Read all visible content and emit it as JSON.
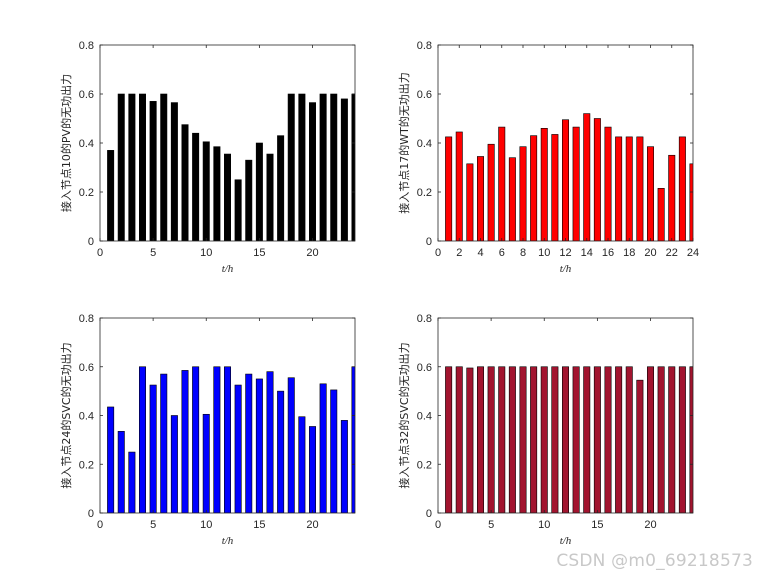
{
  "watermark": "CSDN @m0_69218573",
  "chart_data": [
    {
      "type": "bar",
      "color": "#000000",
      "x": [
        1,
        2,
        3,
        4,
        5,
        6,
        7,
        8,
        9,
        10,
        11,
        12,
        13,
        14,
        15,
        16,
        17,
        18,
        19,
        20,
        21,
        22,
        23,
        24
      ],
      "values": [
        0.37,
        0.6,
        0.6,
        0.6,
        0.57,
        0.6,
        0.565,
        0.475,
        0.44,
        0.405,
        0.385,
        0.355,
        0.25,
        0.33,
        0.4,
        0.355,
        0.43,
        0.6,
        0.6,
        0.565,
        0.6,
        0.6,
        0.58,
        0.6
      ],
      "xlim": [
        0,
        24
      ],
      "ylim": [
        0,
        0.8
      ],
      "xticks": [
        0,
        5,
        10,
        15,
        20
      ],
      "yticks": [
        0,
        0.2,
        0.4,
        0.6,
        0.8
      ],
      "xtick_labels": [
        "0",
        "5",
        "10",
        "15",
        "20"
      ],
      "ytick_labels": [
        "0",
        "0.2",
        "0.4",
        "0.6",
        "0.8"
      ],
      "xlabel": "t/h",
      "ylabel": "接入节点10的PV的无功出力"
    },
    {
      "type": "bar",
      "color": "#ff0000",
      "x": [
        1,
        2,
        3,
        4,
        5,
        6,
        7,
        8,
        9,
        10,
        11,
        12,
        13,
        14,
        15,
        16,
        17,
        18,
        19,
        20,
        21,
        22,
        23,
        24
      ],
      "values": [
        0.425,
        0.445,
        0.315,
        0.345,
        0.395,
        0.465,
        0.34,
        0.385,
        0.43,
        0.46,
        0.435,
        0.495,
        0.465,
        0.52,
        0.5,
        0.465,
        0.425,
        0.425,
        0.425,
        0.385,
        0.215,
        0.35,
        0.425,
        0.315
      ],
      "xlim": [
        0,
        24
      ],
      "ylim": [
        0,
        0.8
      ],
      "xticks": [
        0,
        2,
        4,
        6,
        8,
        10,
        12,
        14,
        16,
        18,
        20,
        22,
        24
      ],
      "yticks": [
        0,
        0.2,
        0.4,
        0.6,
        0.8
      ],
      "xtick_labels": [
        "0",
        "2",
        "4",
        "6",
        "8",
        "10",
        "12",
        "14",
        "16",
        "18",
        "20",
        "22",
        "24"
      ],
      "ytick_labels": [
        "0",
        "0.2",
        "0.4",
        "0.6",
        "0.8"
      ],
      "xlabel": "t/h",
      "ylabel": "接入节点17的WT的无功出力"
    },
    {
      "type": "bar",
      "color": "#0000ff",
      "x": [
        1,
        2,
        3,
        4,
        5,
        6,
        7,
        8,
        9,
        10,
        11,
        12,
        13,
        14,
        15,
        16,
        17,
        18,
        19,
        20,
        21,
        22,
        23,
        24
      ],
      "values": [
        0.435,
        0.335,
        0.25,
        0.6,
        0.525,
        0.57,
        0.4,
        0.585,
        0.6,
        0.405,
        0.6,
        0.6,
        0.525,
        0.57,
        0.55,
        0.58,
        0.5,
        0.555,
        0.395,
        0.355,
        0.53,
        0.505,
        0.38,
        0.6
      ],
      "xlim": [
        0,
        24
      ],
      "ylim": [
        0,
        0.8
      ],
      "xticks": [
        0,
        5,
        10,
        15,
        20
      ],
      "yticks": [
        0,
        0.2,
        0.4,
        0.6,
        0.8
      ],
      "xtick_labels": [
        "0",
        "5",
        "10",
        "15",
        "20"
      ],
      "ytick_labels": [
        "0",
        "0.2",
        "0.4",
        "0.6",
        "0.8"
      ],
      "xlabel": "t/h",
      "ylabel": "接入节点24的SVC的无功出力"
    },
    {
      "type": "bar",
      "color": "#a2142f",
      "x": [
        1,
        2,
        3,
        4,
        5,
        6,
        7,
        8,
        9,
        10,
        11,
        12,
        13,
        14,
        15,
        16,
        17,
        18,
        19,
        20,
        21,
        22,
        23,
        24
      ],
      "values": [
        0.6,
        0.6,
        0.595,
        0.6,
        0.6,
        0.6,
        0.6,
        0.6,
        0.6,
        0.6,
        0.6,
        0.6,
        0.6,
        0.6,
        0.6,
        0.6,
        0.6,
        0.6,
        0.545,
        0.6,
        0.6,
        0.6,
        0.6,
        0.6
      ],
      "xlim": [
        0,
        24
      ],
      "ylim": [
        0,
        0.8
      ],
      "xticks": [
        0,
        5,
        10,
        15,
        20
      ],
      "yticks": [
        0,
        0.2,
        0.4,
        0.6,
        0.8
      ],
      "xtick_labels": [
        "0",
        "5",
        "10",
        "15",
        "20"
      ],
      "ytick_labels": [
        "0",
        "0.2",
        "0.4",
        "0.6",
        "0.8"
      ],
      "xlabel": "t/h",
      "ylabel": "接入节点32的SVC的无功出力"
    }
  ]
}
